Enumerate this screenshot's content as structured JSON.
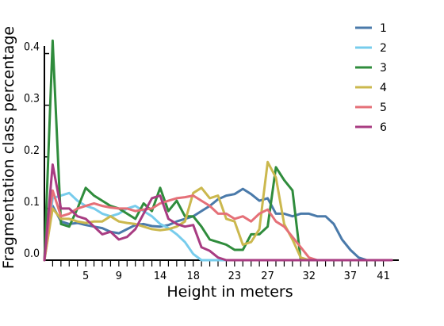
{
  "chart_data": {
    "type": "line",
    "title": "",
    "xlabel": "Height in meters",
    "ylabel": "Fragmentation class percentage",
    "xlim": [
      0,
      42
    ],
    "ylim": [
      0,
      0.43
    ],
    "x_ticks": [
      "5",
      "9",
      "14",
      "18",
      "23",
      "27",
      "32",
      "37",
      "41"
    ],
    "y_ticks": [
      "0.0",
      "0.1",
      "0.2",
      "0.3",
      "0.4"
    ],
    "grid": false,
    "legend": "top-right",
    "x": [
      0,
      1,
      2,
      3,
      4,
      5,
      6,
      7,
      8,
      9,
      10,
      11,
      12,
      13,
      14,
      15,
      16,
      17,
      18,
      19,
      20,
      21,
      22,
      23,
      24,
      25,
      26,
      27,
      28,
      29,
      30,
      31,
      32,
      33,
      34,
      35,
      36,
      37,
      38,
      39,
      40,
      41,
      42
    ],
    "series": [
      {
        "name": "1",
        "color": "#4a7aaa",
        "values": [
          0.0,
          0.105,
          0.075,
          0.07,
          0.072,
          0.068,
          0.065,
          0.062,
          0.055,
          0.052,
          0.06,
          0.068,
          0.07,
          0.066,
          0.065,
          0.068,
          0.075,
          0.08,
          0.085,
          0.095,
          0.105,
          0.118,
          0.125,
          0.128,
          0.138,
          0.128,
          0.115,
          0.12,
          0.09,
          0.09,
          0.085,
          0.09,
          0.09,
          0.085,
          0.085,
          0.07,
          0.04,
          0.02,
          0.005,
          0.0,
          0.0,
          0.0,
          0.0
        ]
      },
      {
        "name": "2",
        "color": "#77ccec",
        "values": [
          0.0,
          0.12,
          0.125,
          0.13,
          0.115,
          0.105,
          0.1,
          0.09,
          0.085,
          0.09,
          0.1,
          0.105,
          0.095,
          0.085,
          0.07,
          0.062,
          0.05,
          0.035,
          0.012,
          0.0,
          0.0,
          0.0,
          0.0,
          0.0,
          0.0,
          0.0,
          0.0,
          0.0,
          0.0,
          0.0,
          0.0,
          0.0,
          0.0,
          0.0,
          0.0,
          0.0,
          0.0,
          0.0,
          0.0,
          0.0,
          0.0,
          0.0,
          0.0
        ]
      },
      {
        "name": "3",
        "color": "#2f8c3c",
        "values": [
          0.0,
          0.425,
          0.07,
          0.065,
          0.1,
          0.14,
          0.125,
          0.115,
          0.105,
          0.1,
          0.09,
          0.08,
          0.11,
          0.095,
          0.14,
          0.095,
          0.115,
          0.085,
          0.085,
          0.065,
          0.04,
          0.035,
          0.03,
          0.02,
          0.02,
          0.05,
          0.05,
          0.065,
          0.18,
          0.155,
          0.135,
          0.0,
          0.0,
          0.0,
          0.0,
          0.0,
          0.0,
          0.0,
          0.0,
          0.0,
          0.0,
          0.0,
          0.0
        ]
      },
      {
        "name": "4",
        "color": "#cbb84e",
        "values": [
          0.0,
          0.1,
          0.08,
          0.08,
          0.075,
          0.072,
          0.075,
          0.075,
          0.085,
          0.075,
          0.072,
          0.07,
          0.065,
          0.06,
          0.058,
          0.06,
          0.065,
          0.075,
          0.13,
          0.14,
          0.12,
          0.125,
          0.08,
          0.075,
          0.03,
          0.035,
          0.06,
          0.19,
          0.16,
          0.07,
          0.04,
          0.005,
          0.0,
          0.0,
          0.0,
          0.0,
          0.0,
          0.0,
          0.0,
          0.0,
          0.0,
          0.0,
          0.0
        ]
      },
      {
        "name": "5",
        "color": "#e57078",
        "values": [
          0.0,
          0.135,
          0.085,
          0.09,
          0.1,
          0.105,
          0.11,
          0.105,
          0.102,
          0.1,
          0.1,
          0.095,
          0.098,
          0.1,
          0.11,
          0.115,
          0.12,
          0.122,
          0.125,
          0.115,
          0.105,
          0.09,
          0.09,
          0.08,
          0.085,
          0.075,
          0.09,
          0.098,
          0.075,
          0.065,
          0.045,
          0.025,
          0.005,
          0.0,
          0.0,
          0.0,
          0.0,
          0.0,
          0.0,
          0.0,
          0.0,
          0.0,
          0.0
        ]
      },
      {
        "name": "6",
        "color": "#a83c82",
        "values": [
          0.0,
          0.185,
          0.1,
          0.1,
          0.085,
          0.08,
          0.065,
          0.05,
          0.055,
          0.04,
          0.045,
          0.06,
          0.09,
          0.12,
          0.125,
          0.08,
          0.07,
          0.065,
          0.068,
          0.025,
          0.018,
          0.005,
          0.0,
          0.0,
          0.0,
          0.0,
          0.0,
          0.0,
          0.0,
          0.0,
          0.0,
          0.0,
          0.0,
          0.0,
          0.0,
          0.0,
          0.0,
          0.0,
          0.0,
          0.0,
          0.0,
          0.0,
          0.0
        ]
      }
    ]
  }
}
